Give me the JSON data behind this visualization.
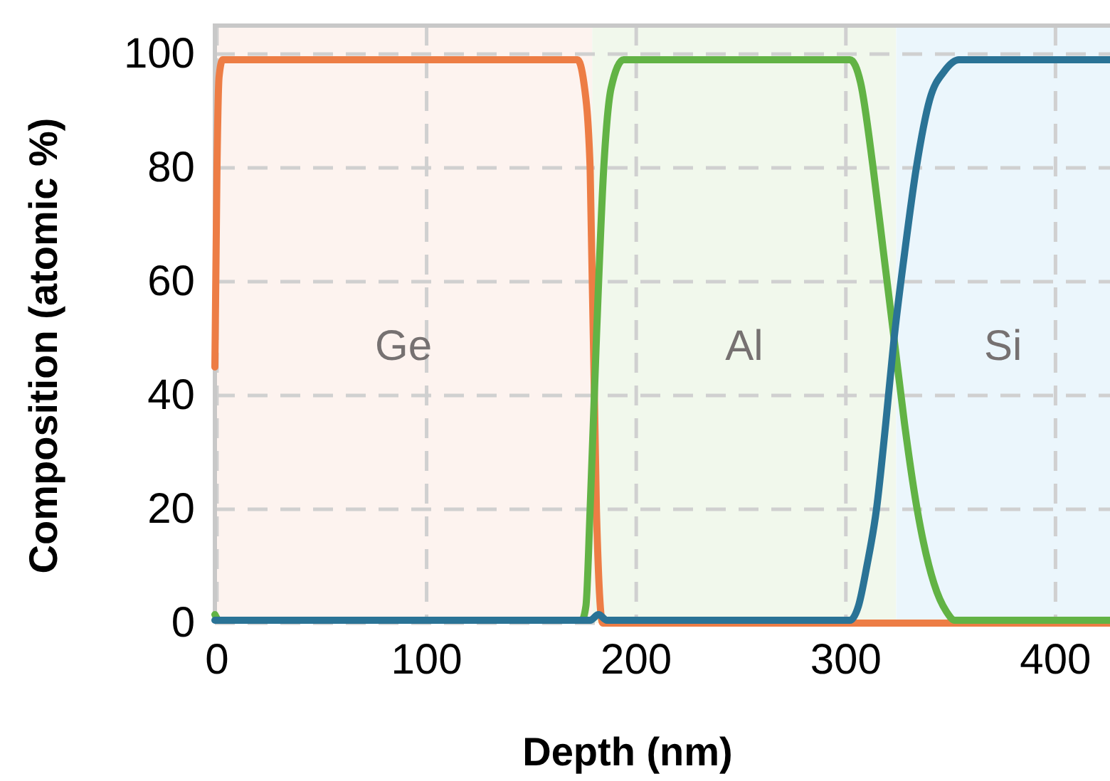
{
  "chart_data": {
    "type": "line",
    "xlabel": "Depth (nm)",
    "ylabel": "Composition (atomic %)",
    "xlim": [
      -1,
      426
    ],
    "ylim": [
      0,
      105
    ],
    "xticks": [
      0,
      100,
      200,
      300,
      400
    ],
    "yticks": [
      0,
      20,
      40,
      60,
      80,
      100
    ],
    "grid": true,
    "line_style": "solid",
    "bands": [
      {
        "axis": "x",
        "from": -1,
        "to": 179,
        "label": "Ge",
        "color": "#fdf3ef"
      },
      {
        "axis": "x",
        "from": 179,
        "to": 324,
        "label": "Al",
        "color": "#f1f8ec"
      },
      {
        "axis": "x",
        "from": 324,
        "to": 426,
        "label": "Si",
        "color": "#ebf6fc"
      }
    ],
    "series": [
      {
        "color": "#ed7d45",
        "x": [
          -1,
          0,
          1,
          2.7,
          100,
          172,
          175,
          178,
          181,
          184,
          190,
          300,
          426
        ],
        "values": [
          45,
          80,
          96,
          99,
          99,
          99,
          95,
          80,
          20,
          0,
          0,
          0,
          0
        ]
      },
      {
        "color": "#62b345",
        "x": [
          -1,
          1,
          174,
          176,
          178,
          181,
          184.5,
          188,
          194,
          302,
          307,
          313,
          318,
          323,
          328,
          334,
          342,
          348,
          352,
          426
        ],
        "values": [
          1.5,
          0.5,
          0.5,
          3,
          20,
          50,
          80,
          94,
          99,
          99,
          95,
          80,
          65,
          50,
          35,
          20,
          7,
          2,
          0.5,
          0.5
        ]
      },
      {
        "color": "#2a7396",
        "x": [
          -1,
          178,
          182,
          186,
          302,
          306,
          310,
          314.6,
          319,
          323,
          328,
          333.6,
          340,
          347,
          354,
          426
        ],
        "values": [
          0.5,
          0.5,
          1.5,
          0.5,
          0.5,
          3,
          10,
          20,
          35,
          50,
          65,
          80,
          92,
          97,
          99,
          99
        ]
      }
    ]
  }
}
